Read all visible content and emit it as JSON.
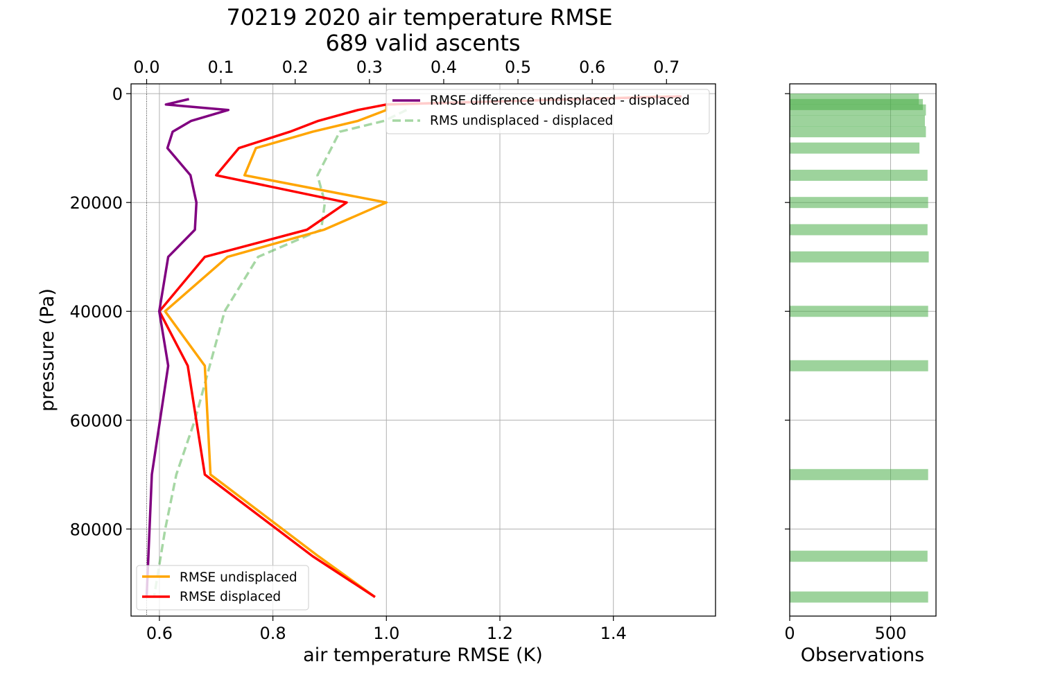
{
  "chart_data": [
    {
      "type": "line",
      "title": "70219 2020 air temperature RMSE",
      "subtitle": "689 valid ascents",
      "xlabel": "air temperature RMSE (K)",
      "ylabel": "pressure (Pa)",
      "xlim": [
        0.55,
        1.58
      ],
      "ylim": [
        96000,
        -1800
      ],
      "y_inverted": true,
      "x_ticks": [
        "0.6",
        "0.8",
        "1.0",
        "1.2",
        "1.4"
      ],
      "y_ticks": [
        "0",
        "20000",
        "40000",
        "60000",
        "80000"
      ],
      "top_axis": {
        "xlim": [
          -0.021,
          0.766
        ],
        "ticks": [
          "0.0",
          "0.1",
          "0.2",
          "0.3",
          "0.4",
          "0.5",
          "0.6",
          "0.7"
        ]
      },
      "grid": true,
      "legends": [
        {
          "placement": "top-right",
          "entries": [
            "RMSE difference undisplaced - displaced",
            "RMS undisplaced - displaced"
          ]
        },
        {
          "placement": "bottom-left",
          "entries": [
            "RMSE undisplaced",
            "RMSE displaced"
          ]
        }
      ],
      "series": [
        {
          "name": "RMSE undisplaced",
          "color": "#ffa500",
          "axis": "bottom",
          "style": "solid",
          "points": [
            [
              1.5,
              500
            ],
            [
              1.0,
              2000
            ],
            [
              1.0,
              3000
            ],
            [
              0.95,
              5000
            ],
            [
              0.87,
              7000
            ],
            [
              0.77,
              10000
            ],
            [
              0.75,
              15000
            ],
            [
              1.0,
              20000
            ],
            [
              0.89,
              25000
            ],
            [
              0.72,
              30000
            ],
            [
              0.61,
              40000
            ],
            [
              0.68,
              50000
            ],
            [
              0.69,
              70000
            ],
            [
              0.88,
              85000
            ],
            [
              0.98,
              92500
            ]
          ]
        },
        {
          "name": "RMSE displaced",
          "color": "#ff0000",
          "axis": "bottom",
          "style": "solid",
          "points": [
            [
              1.52,
              500
            ],
            [
              1.0,
              2000
            ],
            [
              0.95,
              3000
            ],
            [
              0.88,
              5000
            ],
            [
              0.83,
              7000
            ],
            [
              0.74,
              10000
            ],
            [
              0.7,
              15000
            ],
            [
              0.93,
              20000
            ],
            [
              0.86,
              25000
            ],
            [
              0.68,
              30000
            ],
            [
              0.6,
              40000
            ],
            [
              0.65,
              50000
            ],
            [
              0.68,
              70000
            ],
            [
              0.87,
              85000
            ],
            [
              0.98,
              92500
            ]
          ]
        },
        {
          "name": "RMSE difference undisplaced - displaced",
          "color": "#800080",
          "axis": "top",
          "style": "solid",
          "points": [
            [
              0.057,
              1000
            ],
            [
              0.026,
              2000
            ],
            [
              0.11,
              3000
            ],
            [
              0.06,
              5000
            ],
            [
              0.035,
              7000
            ],
            [
              0.028,
              10000
            ],
            [
              0.059,
              15000
            ],
            [
              0.067,
              20000
            ],
            [
              0.065,
              25000
            ],
            [
              0.029,
              30000
            ],
            [
              0.017,
              40000
            ],
            [
              0.029,
              50000
            ],
            [
              0.007,
              70000
            ],
            [
              0.0,
              92500
            ]
          ]
        },
        {
          "name": "RMS undisplaced - displaced",
          "color": "#4daf4a",
          "axis": "top",
          "style": "dashed",
          "opacity": 0.5,
          "points": [
            [
              0.35,
              3000
            ],
            [
              0.32,
              5000
            ],
            [
              0.26,
              7000
            ],
            [
              0.23,
              15000
            ],
            [
              0.24,
              20000
            ],
            [
              0.235,
              25000
            ],
            [
              0.15,
              30000
            ],
            [
              0.105,
              40000
            ],
            [
              0.085,
              50000
            ],
            [
              0.065,
              60000
            ],
            [
              0.04,
              70000
            ],
            [
              0.025,
              80000
            ],
            [
              0.01,
              92500
            ]
          ]
        }
      ]
    },
    {
      "type": "bar",
      "orientation": "horizontal",
      "xlabel": "Observations",
      "xlim": [
        0,
        725
      ],
      "ylim": [
        96000,
        -1800
      ],
      "x_ticks": [
        "0",
        "500"
      ],
      "grid": true,
      "color": "#4daf4a",
      "bars": [
        {
          "pressure": 1000,
          "count": 640
        },
        {
          "pressure": 2000,
          "count": 660
        },
        {
          "pressure": 3000,
          "count": 675
        },
        {
          "pressure": 5000,
          "count": 670
        },
        {
          "pressure": 7000,
          "count": 675
        },
        {
          "pressure": 10000,
          "count": 643
        },
        {
          "pressure": 15000,
          "count": 683
        },
        {
          "pressure": 20000,
          "count": 686
        },
        {
          "pressure": 25000,
          "count": 683
        },
        {
          "pressure": 30000,
          "count": 689
        },
        {
          "pressure": 40000,
          "count": 686
        },
        {
          "pressure": 50000,
          "count": 686
        },
        {
          "pressure": 70000,
          "count": 686
        },
        {
          "pressure": 85000,
          "count": 683
        },
        {
          "pressure": 92500,
          "count": 686
        }
      ]
    }
  ]
}
